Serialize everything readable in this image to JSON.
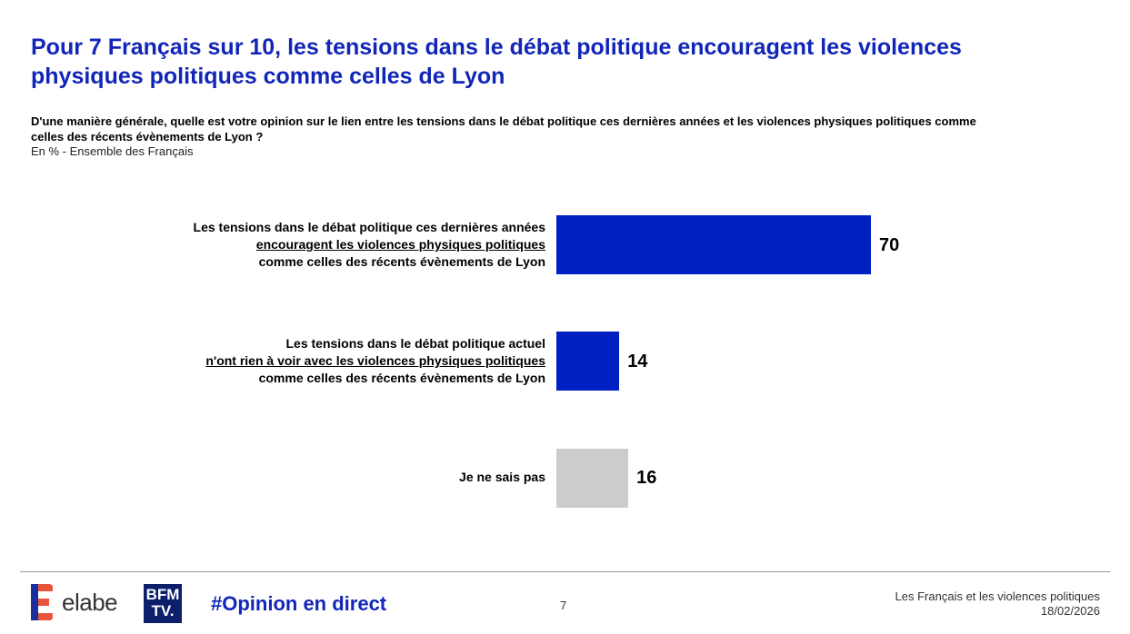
{
  "header": {
    "title": "Pour 7 Français sur 10, les tensions dans le débat politique encouragent les violences physiques politiques comme celles de Lyon",
    "question": "D'une manière générale, quelle est votre opinion sur le lien entre les tensions dans le débat politique ces dernières années et les violences physiques politiques comme celles des récents évènements de Lyon ?",
    "basis": "En % - Ensemble des Français"
  },
  "chart_data": {
    "type": "bar",
    "orientation": "horizontal",
    "unit": "%",
    "xlim": [
      0,
      100
    ],
    "categories": [
      {
        "line1": "Les tensions dans le débat politique ces dernières années",
        "line2": "encouragent les violences physiques politiques",
        "line3": "comme celles des récents évènements de Lyon"
      },
      {
        "line1": "Les tensions dans le débat politique actuel",
        "line2": "n'ont rien à voir avec les violences physiques politiques",
        "line3": "comme celles des récents évènements de Lyon"
      },
      {
        "line1": "Je ne sais pas"
      }
    ],
    "values": [
      70,
      14,
      16
    ],
    "colors": [
      "#0020c2",
      "#0020c2",
      "#cccccc"
    ]
  },
  "footer": {
    "brand": "elabe",
    "partner": "BFM TV.",
    "hashtag": "#Opinion en direct",
    "page": "7",
    "study_title": "Les Français et les violences politiques",
    "date": "18/02/2026"
  }
}
